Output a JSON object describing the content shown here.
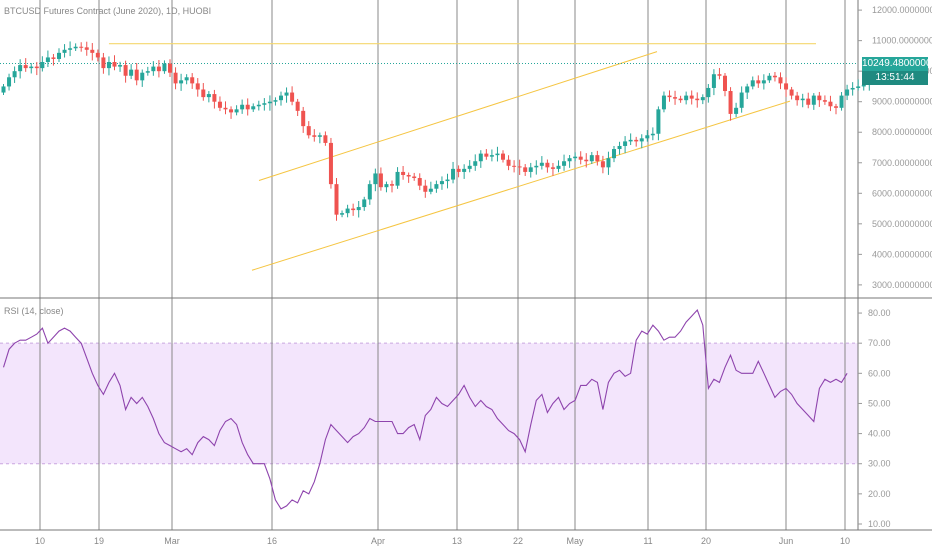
{
  "colors": {
    "up": "#26a69a",
    "down": "#ef5350",
    "channel": "#f5c542",
    "resistance": "#f5d76e",
    "rsi_line": "#8e44ad",
    "rsi_band": "#f3e5fc",
    "grid": "#888888",
    "last_price": "#26a69a"
  },
  "chart_data": [
    {
      "type": "candlestick",
      "title": "BTCUSD Futures Contract (June 2020), 1D, HUOBI",
      "x_tick_labels": [
        "10",
        "19",
        "Mar",
        "16",
        "Apr",
        "13",
        "22",
        "May",
        "11",
        "20",
        "Jun",
        "10"
      ],
      "y_tick_labels": [
        "12000.00000000",
        "11000.00000000",
        "10000.00000000",
        "9000.00000000",
        "8000.00000000",
        "7000.00000000",
        "6000.00000000",
        "5000.00000000",
        "4000.00000000",
        "3000.00000000"
      ],
      "ylim": [
        2800,
        12200
      ],
      "last_price_label": "10249.48000000",
      "countdown_label": "13:51:44",
      "last_price": 10249.48,
      "resistance_level": 10900,
      "channel_upper": [
        [
          15,
          6420
        ],
        [
          89,
          10640
        ]
      ],
      "channel_lower": [
        [
          15,
          3480
        ],
        [
          92,
          9020
        ]
      ],
      "closes": [
        9500,
        9800,
        10000,
        10200,
        10100,
        10150,
        10100,
        10300,
        10450,
        10400,
        10600,
        10700,
        10750,
        10800,
        10780,
        10700,
        10600,
        10450,
        10100,
        10300,
        10150,
        10200,
        9850,
        10050,
        9700,
        9950,
        10000,
        10150,
        10000,
        10250,
        9950,
        9600,
        9700,
        9800,
        9600,
        9400,
        9150,
        9250,
        9000,
        8800,
        8750,
        8650,
        8750,
        8900,
        8750,
        8850,
        8900,
        8950,
        9000,
        9050,
        9200,
        9300,
        9000,
        8700,
        8200,
        7900,
        7850,
        7900,
        7650,
        6300,
        5300,
        5350,
        5500,
        5450,
        5550,
        5800,
        6300,
        6650,
        6200,
        6300,
        6250,
        6700,
        6600,
        6550,
        6500,
        6250,
        6050,
        6150,
        6300,
        6400,
        6450,
        6800,
        6700,
        6800,
        6900,
        7050,
        7300,
        7200,
        7250,
        7300,
        7100,
        6900,
        6880,
        6850,
        6700,
        6850,
        6900,
        7000,
        6850,
        6800,
        6900,
        7050,
        7150,
        7200,
        7100,
        7050,
        7250,
        7050,
        6850,
        7150,
        7450,
        7550,
        7700,
        7750,
        7700,
        7800,
        7900,
        7950,
        8750,
        9200,
        9150,
        9100,
        9050,
        9200,
        9100,
        9050,
        9150,
        9450,
        9900,
        9850,
        9350,
        8600,
        8800,
        9300,
        9500,
        9700,
        9600,
        9700,
        9850,
        9800,
        9600,
        9400,
        9200,
        9050,
        9100,
        8900,
        9200,
        9050,
        9000,
        8850,
        8800,
        9200,
        9400,
        9450,
        9500,
        9550,
        10250
      ],
      "rsi": {
        "label": "RSI (14, close)",
        "y_tick_labels": [
          "80.00",
          "70.00",
          "60.00",
          "50.00",
          "40.00",
          "30.00",
          "20.00",
          "10.00"
        ],
        "ylim": [
          9,
          84
        ],
        "band": [
          30,
          70
        ],
        "values": [
          62,
          68,
          70,
          71,
          71,
          72,
          73,
          75,
          70,
          72,
          74,
          75,
          74,
          72,
          70,
          65,
          60,
          56,
          53,
          57,
          60,
          56,
          48,
          52,
          50,
          52,
          49,
          45,
          40,
          37,
          36,
          35,
          34,
          35,
          33,
          37,
          39,
          38,
          36,
          41,
          44,
          45,
          43,
          37,
          33,
          30,
          30,
          30,
          25,
          18,
          15,
          16,
          18,
          17,
          21,
          20,
          24,
          30,
          38,
          43,
          41,
          39,
          37,
          39,
          40,
          42,
          45,
          44,
          44,
          44,
          44,
          40,
          40,
          42,
          43,
          38,
          46,
          48,
          52,
          50,
          49,
          51,
          53,
          56,
          52,
          49,
          51,
          49,
          48,
          45,
          43,
          41,
          40,
          38,
          34,
          43,
          51,
          53,
          47,
          50,
          52,
          48,
          50,
          51,
          56,
          56,
          58,
          57,
          48,
          57,
          60,
          61,
          59,
          60,
          71,
          74,
          73,
          76,
          74,
          71,
          72,
          72,
          74,
          77,
          79,
          81,
          76,
          55,
          58,
          57,
          62,
          66,
          61,
          60,
          60,
          60,
          64,
          60,
          56,
          52,
          54,
          55,
          53,
          50,
          48,
          46,
          44,
          55,
          58,
          57,
          58,
          57,
          60
        ]
      }
    }
  ]
}
